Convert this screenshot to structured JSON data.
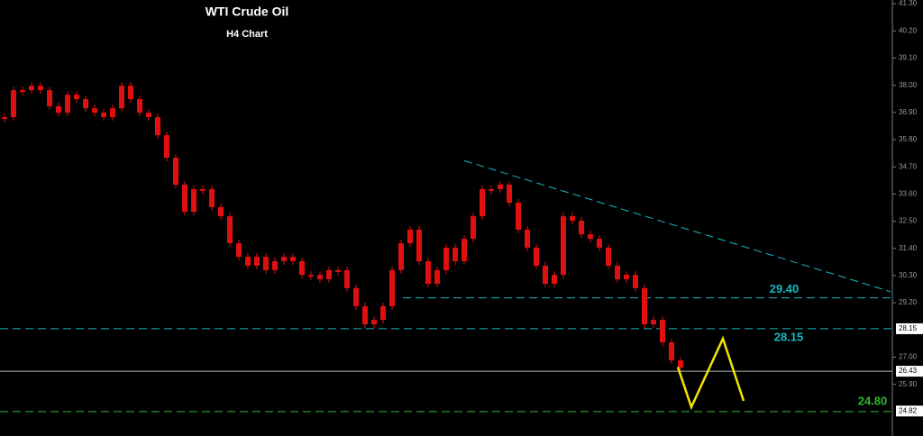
{
  "chart_data": {
    "type": "candlestick",
    "title": "WTI Crude Oil",
    "subtitle": "H4 Chart",
    "color": "#e01010",
    "values": [
      36.71,
      37.8,
      37.8,
      37.98,
      37.8,
      37.15,
      36.89,
      37.62,
      37.44,
      37.07,
      36.89,
      36.71,
      37.07,
      37.98,
      37.44,
      36.89,
      36.71,
      35.98,
      35.07,
      33.98,
      32.88,
      33.8,
      33.8,
      33.07,
      32.7,
      31.61,
      31.06,
      30.7,
      31.06,
      30.52,
      30.88,
      31.06,
      30.88,
      30.33,
      30.33,
      30.15,
      30.52,
      30.52,
      29.79,
      29.06,
      28.33,
      28.51,
      29.06,
      30.52,
      31.61,
      32.16,
      30.88,
      29.97,
      30.52,
      31.43,
      30.88,
      31.79,
      32.7,
      33.8,
      33.8,
      33.98,
      33.25,
      32.16,
      31.43,
      30.7,
      29.97,
      30.33,
      32.7,
      32.52,
      31.97,
      31.79,
      31.43,
      30.7,
      30.15,
      30.33,
      29.79,
      28.33,
      28.51,
      27.6,
      26.87,
      26.58
    ],
    "ylim": [
      23.81,
      41.45
    ],
    "yticks": [
      {
        "value": 41.3,
        "label": "41.30"
      },
      {
        "value": 40.2,
        "label": "40.20"
      },
      {
        "value": 39.1,
        "label": "39.10"
      },
      {
        "value": 38,
        "label": "38.00"
      },
      {
        "value": 36.9,
        "label": "36.90"
      },
      {
        "value": 35.8,
        "label": "35.80"
      },
      {
        "value": 34.7,
        "label": "34.70"
      },
      {
        "value": 33.6,
        "label": "33.60"
      },
      {
        "value": 32.5,
        "label": "32.50"
      },
      {
        "value": 31.4,
        "label": "31.40"
      },
      {
        "value": 30.3,
        "label": "30.30"
      },
      {
        "value": 29.2,
        "label": "29.20"
      },
      {
        "value": 27,
        "label": "27.00"
      },
      {
        "value": 25.9,
        "label": "25.90"
      }
    ],
    "price_tags": [
      {
        "value": 28.15,
        "label": "28.15"
      },
      {
        "value": 26.43,
        "label": "26.43"
      },
      {
        "value": 24.82,
        "label": "24.82"
      }
    ],
    "levels": [
      {
        "value": 29.4,
        "label": "29.40",
        "color": "#17b8c0",
        "x_start": 44.2
      },
      {
        "value": 28.15,
        "label": "28.15",
        "color": "#17b8c0",
        "x_start": -0.5
      },
      {
        "value": 24.8,
        "label": "24.80",
        "color": "#2fb82f",
        "x_start": -0.5
      }
    ],
    "current_price": 26.43,
    "trendline": {
      "color": "#17b8c0",
      "x": [
        51,
        98.3
      ],
      "values": [
        34.95,
        29.65
      ]
    },
    "projection": {
      "color": "#f2e600",
      "x": [
        74.7,
        76.2,
        79.7,
        82
      ],
      "values": [
        26.6,
        24.98,
        27.75,
        25.23
      ]
    }
  }
}
